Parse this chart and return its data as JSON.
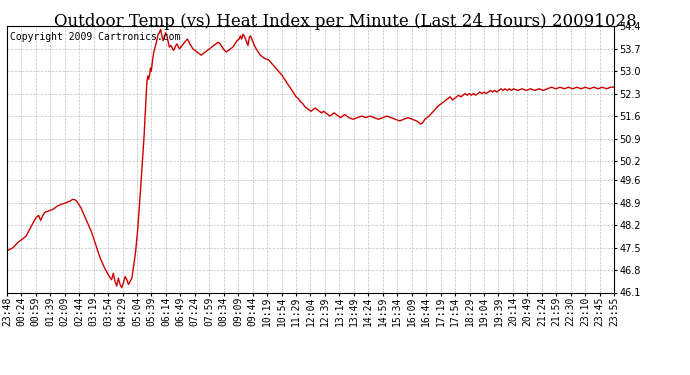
{
  "title": "Outdoor Temp (vs) Heat Index per Minute (Last 24 Hours) 20091028",
  "copyright": "Copyright 2009 Cartronics.com",
  "line_color": "#cc0000",
  "background_color": "#ffffff",
  "grid_color": "#bbbbbb",
  "ylim": [
    46.1,
    54.4
  ],
  "yticks": [
    46.1,
    46.8,
    47.5,
    48.2,
    48.9,
    49.6,
    50.2,
    50.9,
    51.6,
    52.3,
    53.0,
    53.7,
    54.4
  ],
  "xtick_labels": [
    "23:48",
    "00:24",
    "00:59",
    "01:39",
    "02:09",
    "02:44",
    "03:19",
    "03:54",
    "04:29",
    "05:04",
    "05:39",
    "06:14",
    "06:49",
    "07:24",
    "07:59",
    "08:34",
    "09:09",
    "09:44",
    "10:19",
    "10:54",
    "11:29",
    "12:04",
    "12:39",
    "13:14",
    "13:49",
    "14:24",
    "14:59",
    "15:34",
    "16:09",
    "16:44",
    "17:19",
    "17:54",
    "18:29",
    "19:04",
    "19:39",
    "20:14",
    "20:49",
    "21:24",
    "21:59",
    "22:30",
    "23:10",
    "23:45",
    "23:55"
  ],
  "title_fontsize": 12,
  "tick_fontsize": 7,
  "copyright_fontsize": 7,
  "keypoints": [
    [
      0,
      47.4
    ],
    [
      15,
      47.5
    ],
    [
      25,
      47.65
    ],
    [
      35,
      47.75
    ],
    [
      45,
      47.85
    ],
    [
      55,
      48.1
    ],
    [
      65,
      48.35
    ],
    [
      70,
      48.45
    ],
    [
      75,
      48.5
    ],
    [
      80,
      48.35
    ],
    [
      85,
      48.5
    ],
    [
      90,
      48.6
    ],
    [
      100,
      48.65
    ],
    [
      110,
      48.7
    ],
    [
      120,
      48.8
    ],
    [
      130,
      48.85
    ],
    [
      140,
      48.9
    ],
    [
      150,
      48.95
    ],
    [
      155,
      49.0
    ],
    [
      160,
      49.0
    ],
    [
      165,
      48.95
    ],
    [
      170,
      48.85
    ],
    [
      175,
      48.75
    ],
    [
      180,
      48.6
    ],
    [
      190,
      48.3
    ],
    [
      200,
      48.0
    ],
    [
      210,
      47.6
    ],
    [
      220,
      47.2
    ],
    [
      230,
      46.9
    ],
    [
      240,
      46.65
    ],
    [
      248,
      46.5
    ],
    [
      252,
      46.7
    ],
    [
      256,
      46.45
    ],
    [
      260,
      46.3
    ],
    [
      264,
      46.55
    ],
    [
      268,
      46.35
    ],
    [
      272,
      46.25
    ],
    [
      276,
      46.4
    ],
    [
      280,
      46.6
    ],
    [
      284,
      46.5
    ],
    [
      288,
      46.35
    ],
    [
      292,
      46.45
    ],
    [
      296,
      46.55
    ],
    [
      300,
      46.9
    ],
    [
      305,
      47.4
    ],
    [
      310,
      48.1
    ],
    [
      315,
      49.0
    ],
    [
      320,
      50.0
    ],
    [
      325,
      51.0
    ],
    [
      328,
      51.8
    ],
    [
      330,
      52.4
    ],
    [
      332,
      52.7
    ],
    [
      334,
      52.85
    ],
    [
      336,
      52.75
    ],
    [
      338,
      52.9
    ],
    [
      340,
      53.1
    ],
    [
      342,
      53.0
    ],
    [
      344,
      53.25
    ],
    [
      346,
      53.45
    ],
    [
      348,
      53.6
    ],
    [
      350,
      53.7
    ],
    [
      352,
      53.8
    ],
    [
      355,
      53.95
    ],
    [
      358,
      54.15
    ],
    [
      361,
      54.2
    ],
    [
      364,
      54.3
    ],
    [
      367,
      54.1
    ],
    [
      370,
      53.95
    ],
    [
      373,
      54.05
    ],
    [
      376,
      54.2
    ],
    [
      379,
      54.1
    ],
    [
      382,
      53.9
    ],
    [
      385,
      53.75
    ],
    [
      388,
      53.8
    ],
    [
      391,
      53.75
    ],
    [
      394,
      53.65
    ],
    [
      397,
      53.7
    ],
    [
      400,
      53.8
    ],
    [
      403,
      53.85
    ],
    [
      406,
      53.75
    ],
    [
      409,
      53.7
    ],
    [
      412,
      53.75
    ],
    [
      415,
      53.8
    ],
    [
      418,
      53.85
    ],
    [
      421,
      53.9
    ],
    [
      424,
      53.95
    ],
    [
      427,
      54.0
    ],
    [
      430,
      53.95
    ],
    [
      433,
      53.85
    ],
    [
      436,
      53.8
    ],
    [
      440,
      53.7
    ],
    [
      445,
      53.65
    ],
    [
      450,
      53.6
    ],
    [
      455,
      53.55
    ],
    [
      460,
      53.5
    ],
    [
      465,
      53.55
    ],
    [
      470,
      53.6
    ],
    [
      475,
      53.65
    ],
    [
      480,
      53.7
    ],
    [
      485,
      53.75
    ],
    [
      490,
      53.8
    ],
    [
      495,
      53.85
    ],
    [
      500,
      53.9
    ],
    [
      505,
      53.85
    ],
    [
      510,
      53.75
    ],
    [
      515,
      53.65
    ],
    [
      520,
      53.6
    ],
    [
      525,
      53.65
    ],
    [
      530,
      53.7
    ],
    [
      535,
      53.75
    ],
    [
      540,
      53.85
    ],
    [
      545,
      53.95
    ],
    [
      550,
      54.0
    ],
    [
      553,
      54.1
    ],
    [
      556,
      54.0
    ],
    [
      559,
      54.15
    ],
    [
      562,
      54.1
    ],
    [
      565,
      54.0
    ],
    [
      568,
      53.9
    ],
    [
      571,
      53.8
    ],
    [
      574,
      54.05
    ],
    [
      577,
      54.1
    ],
    [
      580,
      54.0
    ],
    [
      583,
      53.9
    ],
    [
      586,
      53.8
    ],
    [
      590,
      53.7
    ],
    [
      595,
      53.6
    ],
    [
      600,
      53.5
    ],
    [
      610,
      53.4
    ],
    [
      620,
      53.35
    ],
    [
      630,
      53.2
    ],
    [
      640,
      53.05
    ],
    [
      650,
      52.9
    ],
    [
      660,
      52.7
    ],
    [
      670,
      52.5
    ],
    [
      675,
      52.4
    ],
    [
      680,
      52.3
    ],
    [
      685,
      52.2
    ],
    [
      690,
      52.15
    ],
    [
      695,
      52.05
    ],
    [
      700,
      52.0
    ],
    [
      705,
      51.9
    ],
    [
      710,
      51.85
    ],
    [
      715,
      51.8
    ],
    [
      720,
      51.75
    ],
    [
      725,
      51.8
    ],
    [
      730,
      51.85
    ],
    [
      735,
      51.8
    ],
    [
      740,
      51.75
    ],
    [
      745,
      51.7
    ],
    [
      750,
      51.75
    ],
    [
      755,
      51.7
    ],
    [
      760,
      51.65
    ],
    [
      765,
      51.6
    ],
    [
      770,
      51.65
    ],
    [
      775,
      51.7
    ],
    [
      780,
      51.65
    ],
    [
      785,
      51.6
    ],
    [
      790,
      51.55
    ],
    [
      795,
      51.6
    ],
    [
      800,
      51.65
    ],
    [
      810,
      51.55
    ],
    [
      820,
      51.5
    ],
    [
      830,
      51.55
    ],
    [
      840,
      51.6
    ],
    [
      850,
      51.55
    ],
    [
      860,
      51.6
    ],
    [
      870,
      51.55
    ],
    [
      880,
      51.5
    ],
    [
      890,
      51.55
    ],
    [
      900,
      51.6
    ],
    [
      910,
      51.55
    ],
    [
      920,
      51.5
    ],
    [
      930,
      51.45
    ],
    [
      940,
      51.5
    ],
    [
      950,
      51.55
    ],
    [
      960,
      51.5
    ],
    [
      970,
      51.45
    ],
    [
      975,
      51.4
    ],
    [
      980,
      51.35
    ],
    [
      985,
      51.4
    ],
    [
      990,
      51.5
    ],
    [
      1000,
      51.6
    ],
    [
      1010,
      51.75
    ],
    [
      1020,
      51.9
    ],
    [
      1030,
      52.0
    ],
    [
      1035,
      52.05
    ],
    [
      1040,
      52.1
    ],
    [
      1045,
      52.15
    ],
    [
      1050,
      52.2
    ],
    [
      1055,
      52.1
    ],
    [
      1060,
      52.15
    ],
    [
      1065,
      52.2
    ],
    [
      1070,
      52.25
    ],
    [
      1075,
      52.2
    ],
    [
      1080,
      52.25
    ],
    [
      1085,
      52.3
    ],
    [
      1090,
      52.25
    ],
    [
      1095,
      52.3
    ],
    [
      1100,
      52.25
    ],
    [
      1105,
      52.3
    ],
    [
      1110,
      52.25
    ],
    [
      1115,
      52.3
    ],
    [
      1120,
      52.35
    ],
    [
      1125,
      52.3
    ],
    [
      1130,
      52.35
    ],
    [
      1135,
      52.3
    ],
    [
      1140,
      52.35
    ],
    [
      1145,
      52.4
    ],
    [
      1150,
      52.35
    ],
    [
      1155,
      52.4
    ],
    [
      1160,
      52.35
    ],
    [
      1165,
      52.4
    ],
    [
      1170,
      52.45
    ],
    [
      1175,
      52.4
    ],
    [
      1180,
      52.45
    ],
    [
      1185,
      52.4
    ],
    [
      1190,
      52.45
    ],
    [
      1195,
      52.4
    ],
    [
      1200,
      52.45
    ],
    [
      1210,
      52.4
    ],
    [
      1220,
      52.45
    ],
    [
      1230,
      52.4
    ],
    [
      1240,
      52.45
    ],
    [
      1250,
      52.4
    ],
    [
      1260,
      52.45
    ],
    [
      1270,
      52.4
    ],
    [
      1280,
      52.45
    ],
    [
      1290,
      52.5
    ],
    [
      1300,
      52.45
    ],
    [
      1310,
      52.5
    ],
    [
      1320,
      52.45
    ],
    [
      1330,
      52.5
    ],
    [
      1340,
      52.45
    ],
    [
      1350,
      52.5
    ],
    [
      1360,
      52.45
    ],
    [
      1370,
      52.5
    ],
    [
      1380,
      52.45
    ],
    [
      1390,
      52.5
    ],
    [
      1400,
      52.45
    ],
    [
      1410,
      52.5
    ],
    [
      1420,
      52.45
    ],
    [
      1430,
      52.5
    ],
    [
      1438,
      52.5
    ]
  ]
}
